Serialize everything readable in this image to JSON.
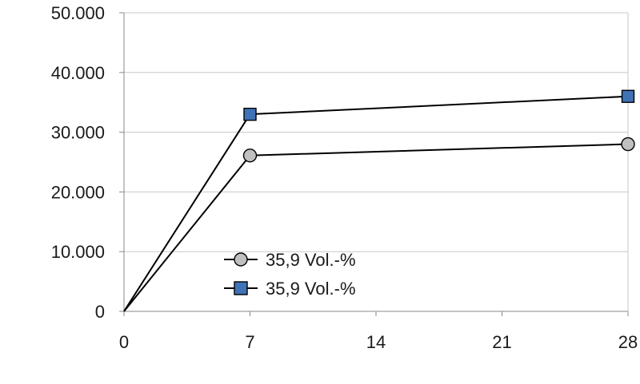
{
  "chart_data": {
    "type": "line",
    "title": "",
    "xlabel": "",
    "ylabel": "",
    "x": [
      0,
      7,
      28
    ],
    "xlim": [
      0,
      28
    ],
    "ylim": [
      0,
      50000
    ],
    "x_ticks": [
      0,
      7,
      14,
      21,
      28
    ],
    "x_tick_labels": [
      "0",
      "7",
      "14",
      "21",
      "28"
    ],
    "y_ticks": [
      0,
      10000,
      20000,
      30000,
      40000,
      50000
    ],
    "y_tick_labels": [
      "0",
      "10.000",
      "20.000",
      "30.000",
      "40.000",
      "50.000"
    ],
    "grid": "horizontal",
    "legend_position": "lower-center",
    "series": [
      {
        "name": "35,9 Vol.-%",
        "marker": "circle",
        "color": "#c0c0c0",
        "values": [
          0,
          26100,
          28000
        ]
      },
      {
        "name": "35,9 Vol.-%",
        "marker": "square",
        "color": "#3f73b5",
        "values": [
          0,
          33000,
          36000
        ]
      }
    ]
  }
}
